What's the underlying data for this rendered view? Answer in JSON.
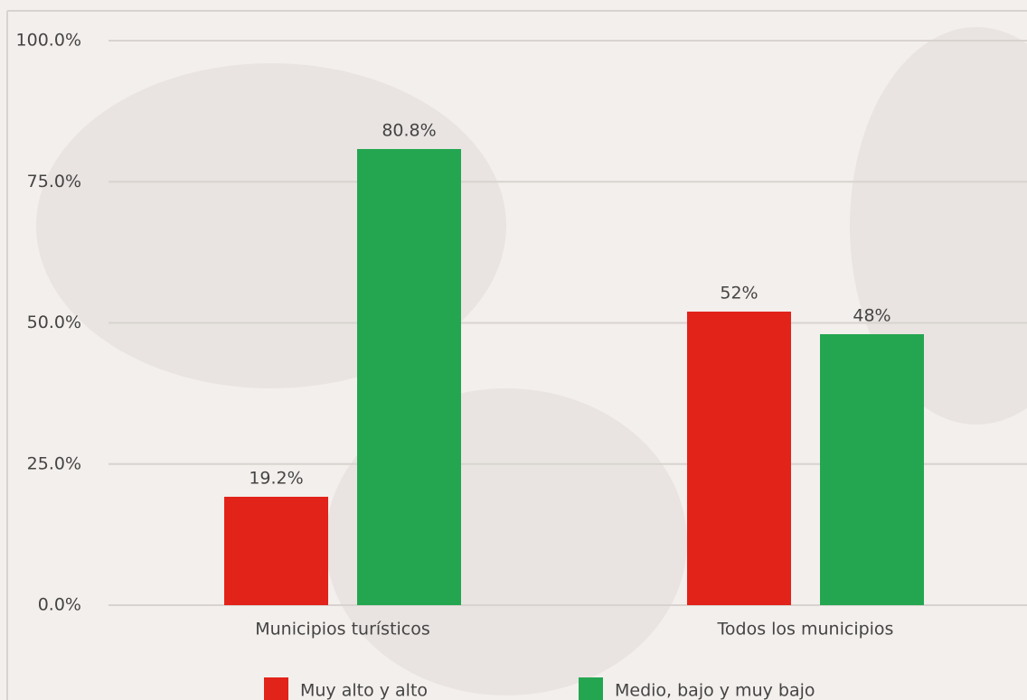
{
  "chart_data": {
    "type": "bar",
    "categories": [
      "Municipios turísticos",
      "Todos los municipios"
    ],
    "series": [
      {
        "name": "Muy alto y alto",
        "color": "#e2231a",
        "values": [
          19.2,
          52
        ],
        "value_labels": [
          "19.2%",
          "52%"
        ]
      },
      {
        "name": "Medio, bajo y muy bajo",
        "color": "#24a651",
        "values": [
          80.8,
          48
        ],
        "value_labels": [
          "80.8%",
          "48%"
        ]
      }
    ],
    "ylim": [
      0,
      100
    ],
    "yticks": [
      {
        "value": 0,
        "label": "0.0%"
      },
      {
        "value": 25,
        "label": "25.0%"
      },
      {
        "value": 50,
        "label": "50.0%"
      },
      {
        "value": 75,
        "label": "75.0%"
      },
      {
        "value": 100,
        "label": "100.0%"
      }
    ],
    "grid": true,
    "legend": "bottom"
  }
}
